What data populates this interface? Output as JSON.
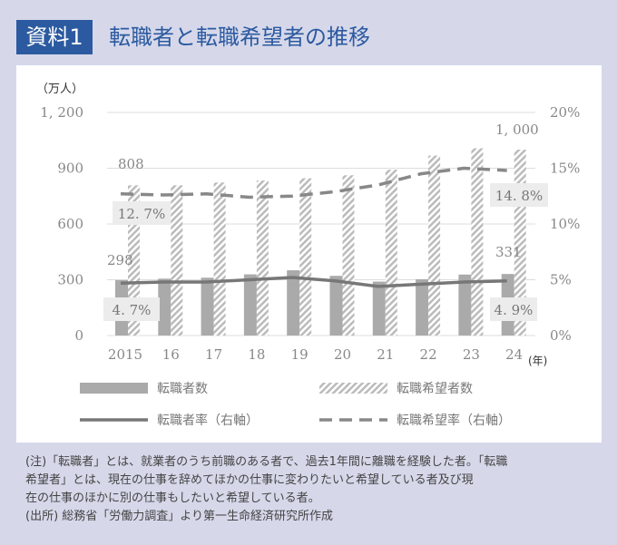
{
  "header": {
    "badge": "資料1",
    "title": "転職者と転職希望者の推移"
  },
  "chart_data": {
    "type": "bar+line",
    "left_unit": "（万人）",
    "x_unit": "(年)",
    "categories": [
      "2015",
      "16",
      "17",
      "18",
      "19",
      "20",
      "21",
      "22",
      "23",
      "24"
    ],
    "left_ylim": [
      0,
      1200
    ],
    "left_ticks": [
      "0",
      "300",
      "600",
      "900",
      "1, 200"
    ],
    "right_ylim": [
      0,
      20
    ],
    "right_ticks": [
      "0%",
      "5%",
      "10%",
      "15%",
      "20%"
    ],
    "grid": true,
    "series": [
      {
        "name": "転職者数",
        "type": "bar",
        "axis": "left",
        "values": [
          298,
          306,
          311,
          329,
          351,
          321,
          290,
          303,
          328,
          331
        ],
        "color": "#aaaaaa"
      },
      {
        "name": "転職希望者数",
        "type": "bar-hatched",
        "axis": "left",
        "values": [
          808,
          808,
          823,
          834,
          846,
          862,
          892,
          968,
          1007,
          1000
        ],
        "color": "#bbbbbb"
      },
      {
        "name": "転職者率（右軸）",
        "type": "line",
        "axis": "right",
        "values": [
          4.7,
          4.8,
          4.8,
          5.0,
          5.2,
          4.9,
          4.4,
          4.6,
          4.8,
          4.9
        ],
        "color": "#777777"
      },
      {
        "name": "転職希望率（右軸）",
        "type": "line-dashed",
        "axis": "right",
        "values": [
          12.7,
          12.6,
          12.7,
          12.4,
          12.5,
          12.9,
          13.5,
          14.5,
          15.0,
          14.8
        ],
        "color": "#888888"
      }
    ],
    "data_labels": {
      "b1_first": "298",
      "b1_last": "331",
      "b2_first": "808",
      "b2_last": "1, 000",
      "r1_first": "4. 7%",
      "r1_last": "4. 9%",
      "r2_first": "12. 7%",
      "r2_last": "14. 8%"
    }
  },
  "notes": [
    "(注)「転職者」とは、就業者のうち前職のある者で、過去1年間に離職を経験した者。「転職",
    "希望者」とは、現在の仕事を辞めてほかの仕事に変わりたいと希望している者及び現",
    "在の仕事のほかに別の仕事もしたいと希望している者。",
    "(出所) 総務省「労働力調査」より第一生命経済研究所作成"
  ]
}
